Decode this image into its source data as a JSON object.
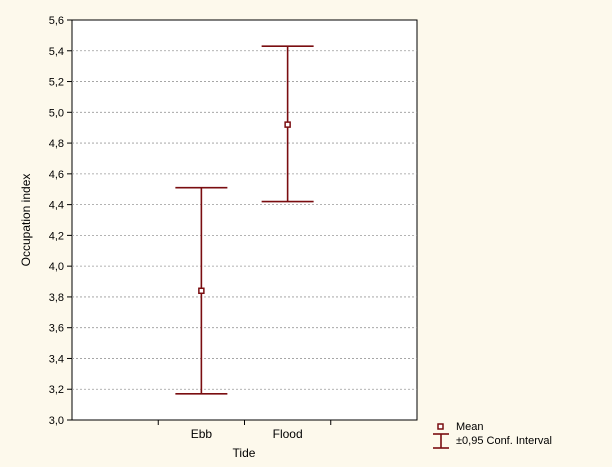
{
  "chart_data": {
    "type": "error-bar",
    "title": "",
    "xlabel": "Tide",
    "ylabel": "Occupation index",
    "categories": [
      "Ebb",
      "Flood"
    ],
    "series": [
      {
        "name": "Mean",
        "values": [
          3.84,
          4.92
        ],
        "ci_lower": [
          3.17,
          4.42
        ],
        "ci_upper": [
          4.51,
          5.43
        ]
      }
    ],
    "ylim": [
      3.0,
      5.6
    ],
    "yticks": [
      "3,0",
      "3,2",
      "3,4",
      "3,6",
      "3,8",
      "4,0",
      "4,2",
      "4,4",
      "4,6",
      "4,8",
      "5,0",
      "5,2",
      "5,4",
      "5,6"
    ],
    "grid": "horizontal-dashed",
    "legend": {
      "placement": "bottom-right",
      "entries": [
        "Mean",
        "±0,95 Conf. Interval"
      ]
    },
    "colors": {
      "series": "#7a0d10",
      "background": "#fdf9ec",
      "plot_background": "#ffffff",
      "grid": "#9a9a9a",
      "axis": "#000000"
    }
  }
}
